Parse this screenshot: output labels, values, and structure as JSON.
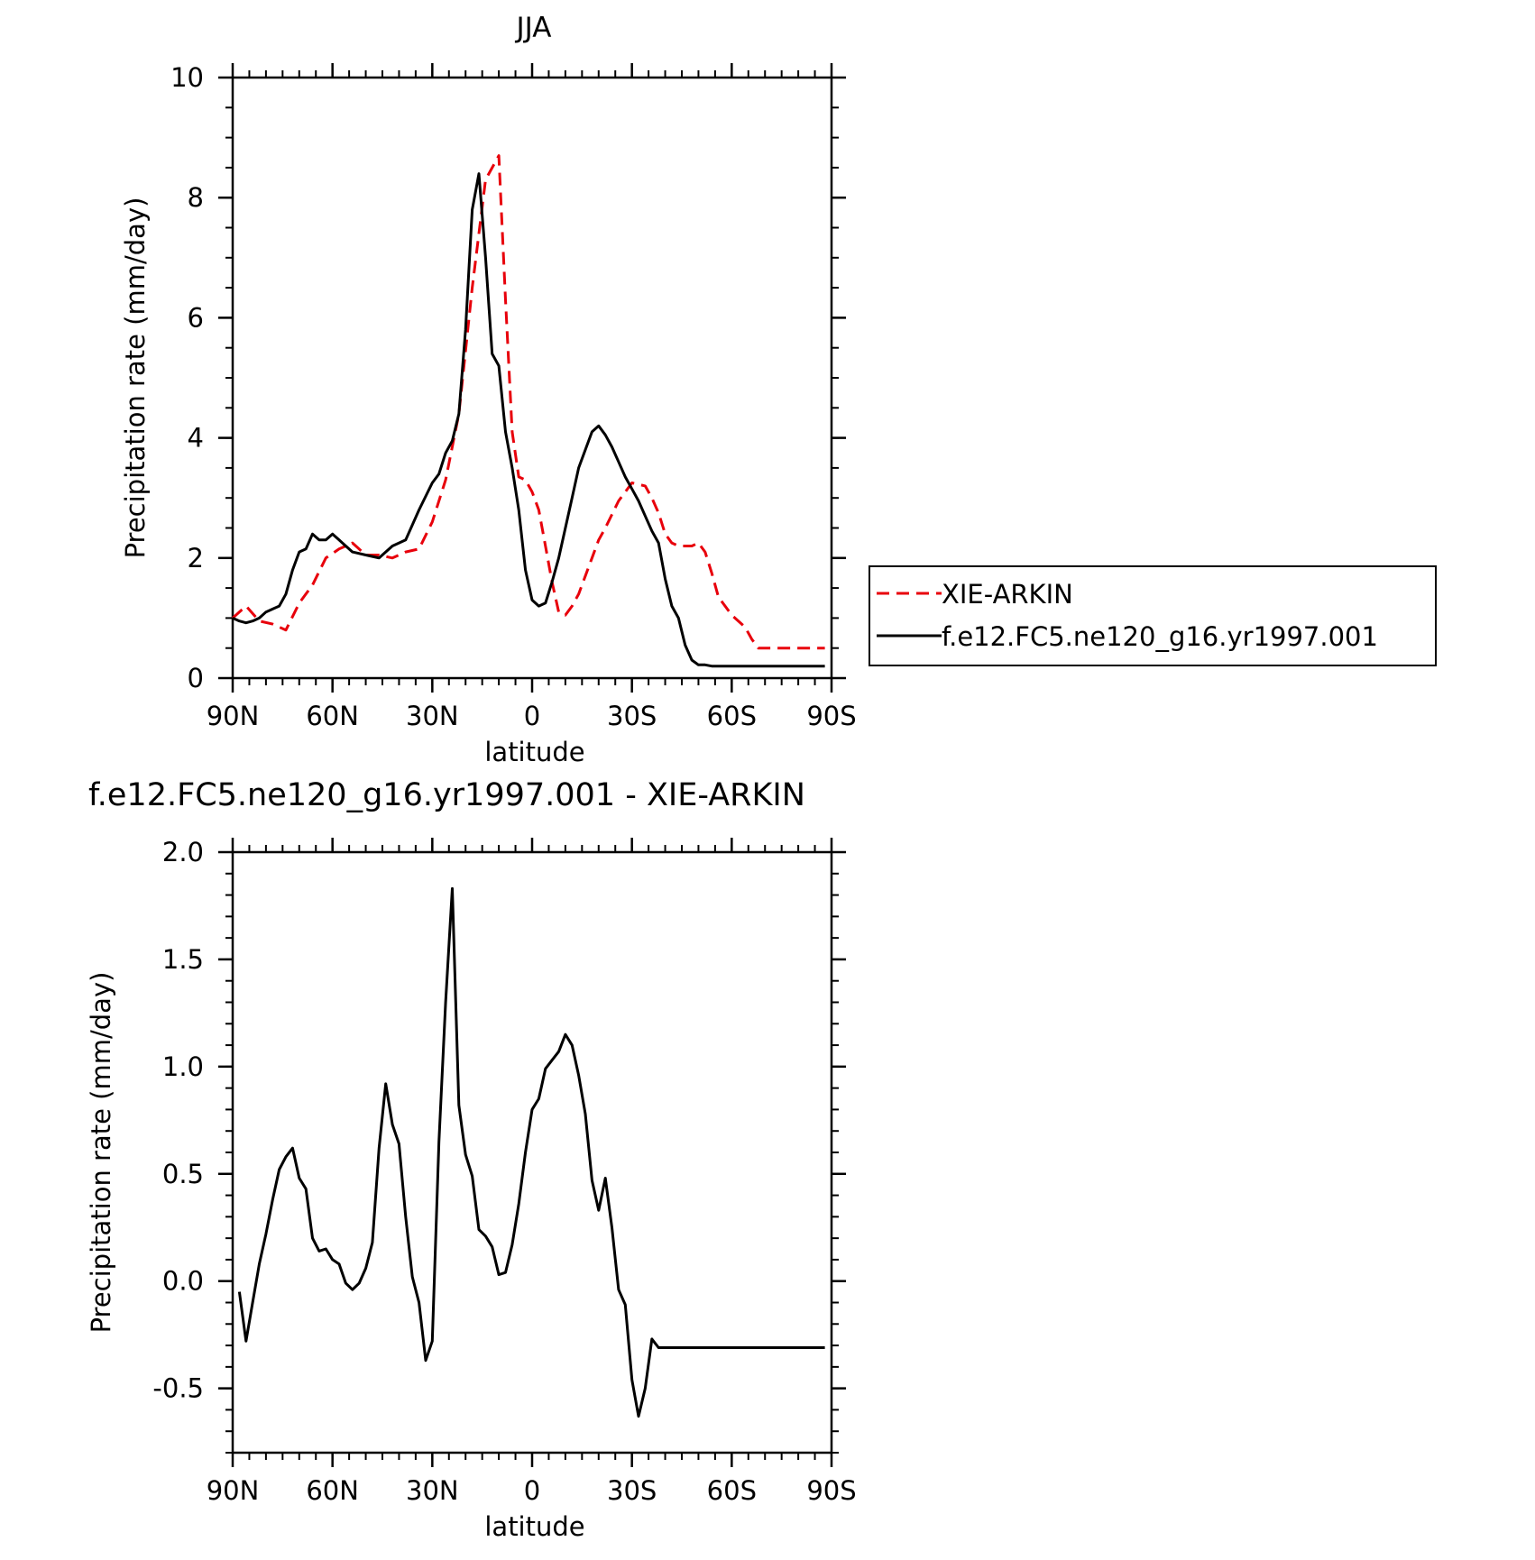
{
  "chart_data": [
    {
      "type": "line",
      "title": "JJA",
      "xlabel": "latitude",
      "ylabel": "Precipitation rate (mm/day)",
      "ylim": [
        0,
        10
      ],
      "xlim": [
        90,
        -90
      ],
      "yticks": [
        0,
        2,
        4,
        6,
        8,
        10
      ],
      "ytick_labels": [
        "0",
        "2",
        "4",
        "6",
        "8",
        "10"
      ],
      "xticks": [
        90,
        60,
        30,
        0,
        -30,
        -60,
        -90
      ],
      "xtick_labels": [
        "90N",
        "60N",
        "30N",
        "0",
        "30S",
        "60S",
        "90S"
      ],
      "grid": false,
      "legend_position": "right",
      "series": [
        {
          "name": "XIE-ARKIN",
          "color": "#e8000b",
          "dash": "dashed",
          "x": [
            90,
            86,
            82,
            78,
            74,
            70,
            66,
            62,
            58,
            54,
            50,
            46,
            42,
            38,
            34,
            30,
            26,
            22,
            18,
            14,
            10,
            8,
            6,
            4,
            2,
            0,
            -2,
            -4,
            -6,
            -8,
            -10,
            -12,
            -14,
            -16,
            -18,
            -20,
            -22,
            -26,
            -30,
            -34,
            -36,
            -38,
            -40,
            -42,
            -44,
            -46,
            -48,
            -50,
            -52,
            -54,
            -56,
            -58,
            -60,
            -62,
            -64,
            -66,
            -68,
            -70,
            -72,
            -74,
            -76,
            -78,
            -80,
            -82,
            -84,
            -86,
            -88
          ],
          "y": [
            1.0,
            1.2,
            0.95,
            0.9,
            0.8,
            1.25,
            1.55,
            2.0,
            2.15,
            2.25,
            2.05,
            2.05,
            2.0,
            2.1,
            2.15,
            2.6,
            3.3,
            4.4,
            6.5,
            8.3,
            8.7,
            6.3,
            4.1,
            3.35,
            3.3,
            3.1,
            2.8,
            2.2,
            1.6,
            1.1,
            1.05,
            1.2,
            1.4,
            1.7,
            2.0,
            2.3,
            2.5,
            2.95,
            3.25,
            3.2,
            3.0,
            2.75,
            2.4,
            2.25,
            2.2,
            2.2,
            2.2,
            2.25,
            2.1,
            1.75,
            1.35,
            1.2,
            1.05,
            0.95,
            0.85,
            0.65,
            0.5,
            0.5,
            0.5,
            0.5,
            0.5,
            0.5,
            0.5,
            0.5,
            0.5,
            0.5,
            0.5
          ]
        },
        {
          "name": "f.e12.FC5.ne120_g16.yr1997.001",
          "color": "#000000",
          "dash": "solid",
          "x": [
            90,
            88,
            86,
            84,
            82,
            80,
            78,
            76,
            74,
            72,
            70,
            68,
            66,
            64,
            62,
            60,
            58,
            56,
            54,
            50,
            46,
            42,
            38,
            34,
            30,
            28,
            26,
            24,
            22,
            20,
            18,
            16,
            14,
            12,
            10,
            8,
            6,
            4,
            2,
            0,
            -2,
            -4,
            -6,
            -8,
            -10,
            -12,
            -14,
            -16,
            -18,
            -20,
            -22,
            -24,
            -26,
            -28,
            -30,
            -32,
            -34,
            -36,
            -38,
            -40,
            -42,
            -44,
            -46,
            -48,
            -50,
            -52,
            -54,
            -56,
            -58,
            -60,
            -62,
            -64,
            -66,
            -68,
            -70,
            -72,
            -74,
            -76,
            -78,
            -80,
            -82,
            -84,
            -86,
            -88
          ],
          "y": [
            1.0,
            0.95,
            0.92,
            0.95,
            1.0,
            1.1,
            1.15,
            1.2,
            1.4,
            1.8,
            2.1,
            2.15,
            2.4,
            2.3,
            2.3,
            2.4,
            2.3,
            2.2,
            2.1,
            2.05,
            2.0,
            2.2,
            2.3,
            2.8,
            3.25,
            3.4,
            3.75,
            3.95,
            4.4,
            5.8,
            7.8,
            8.4,
            7.0,
            5.4,
            5.2,
            4.1,
            3.5,
            2.8,
            1.8,
            1.3,
            1.2,
            1.25,
            1.6,
            2.0,
            2.5,
            3.0,
            3.5,
            3.8,
            4.1,
            4.2,
            4.05,
            3.85,
            3.6,
            3.35,
            3.15,
            2.95,
            2.7,
            2.45,
            2.25,
            1.65,
            1.2,
            1.0,
            0.55,
            0.3,
            0.22,
            0.22,
            0.2,
            0.2,
            0.2,
            0.2,
            0.2,
            0.2,
            0.2,
            0.2,
            0.2,
            0.2,
            0.2,
            0.2,
            0.2,
            0.2,
            0.2,
            0.2,
            0.2,
            0.2
          ]
        }
      ]
    },
    {
      "type": "line",
      "title": "f.e12.FC5.ne120_g16.yr1997.001 - XIE-ARKIN",
      "xlabel": "latitude",
      "ylabel": "Precipitation rate (mm/day)",
      "ylim": [
        -0.8,
        2.0
      ],
      "xlim": [
        90,
        -90
      ],
      "yticks": [
        -0.5,
        0.0,
        0.5,
        1.0,
        1.5,
        2.0
      ],
      "ytick_labels": [
        "-0.5",
        "0.0",
        "0.5",
        "1.0",
        "1.5",
        "2.0"
      ],
      "xticks": [
        90,
        60,
        30,
        0,
        -30,
        -60,
        -90
      ],
      "xtick_labels": [
        "90N",
        "60N",
        "30N",
        "0",
        "30S",
        "60S",
        "90S"
      ],
      "grid": false,
      "series": [
        {
          "color": "#000000",
          "dash": "solid",
          "x": [
            88,
            86,
            84,
            82,
            80,
            78,
            76,
            74,
            72,
            70,
            68,
            66,
            64,
            62,
            60,
            58,
            56,
            54,
            52,
            50,
            48,
            46,
            44,
            42,
            40,
            38,
            36,
            34,
            32,
            30,
            28,
            26,
            24,
            22,
            20,
            18,
            16,
            14,
            12,
            10,
            8,
            6,
            4,
            2,
            0,
            -2,
            -4,
            -6,
            -8,
            -10,
            -12,
            -14,
            -16,
            -18,
            -20,
            -22,
            -24,
            -26,
            -28,
            -30,
            -32,
            -34,
            -36,
            -38,
            -40,
            -42,
            -44,
            -46,
            -48,
            -50,
            -52,
            -54,
            -56,
            -58,
            -60,
            -62,
            -64,
            -66,
            -68,
            -70,
            -72,
            -74,
            -76,
            -78,
            -80,
            -82,
            -84,
            -86,
            -88
          ],
          "y": [
            -0.05,
            -0.28,
            -0.1,
            0.08,
            0.22,
            0.38,
            0.52,
            0.58,
            0.62,
            0.48,
            0.43,
            0.2,
            0.14,
            0.15,
            0.1,
            0.08,
            -0.01,
            -0.04,
            -0.01,
            0.06,
            0.18,
            0.62,
            0.92,
            0.73,
            0.64,
            0.3,
            0.02,
            -0.1,
            -0.37,
            -0.28,
            0.65,
            1.3,
            1.83,
            0.82,
            0.59,
            0.49,
            0.24,
            0.21,
            0.16,
            0.03,
            0.04,
            0.17,
            0.36,
            0.6,
            0.8,
            0.85,
            0.99,
            1.03,
            1.07,
            1.15,
            1.1,
            0.96,
            0.78,
            0.47,
            0.33,
            0.48,
            0.25,
            -0.04,
            -0.11,
            -0.46,
            -0.63,
            -0.5,
            -0.27,
            -0.31,
            -0.31,
            -0.31,
            -0.31,
            -0.31,
            -0.31,
            -0.31,
            -0.31,
            -0.31,
            -0.31,
            -0.31,
            -0.31,
            -0.31,
            -0.31,
            -0.31,
            -0.31,
            -0.31,
            -0.31,
            -0.31,
            -0.31,
            -0.31,
            -0.31,
            -0.31,
            -0.31,
            -0.31,
            -0.31
          ]
        }
      ]
    }
  ]
}
